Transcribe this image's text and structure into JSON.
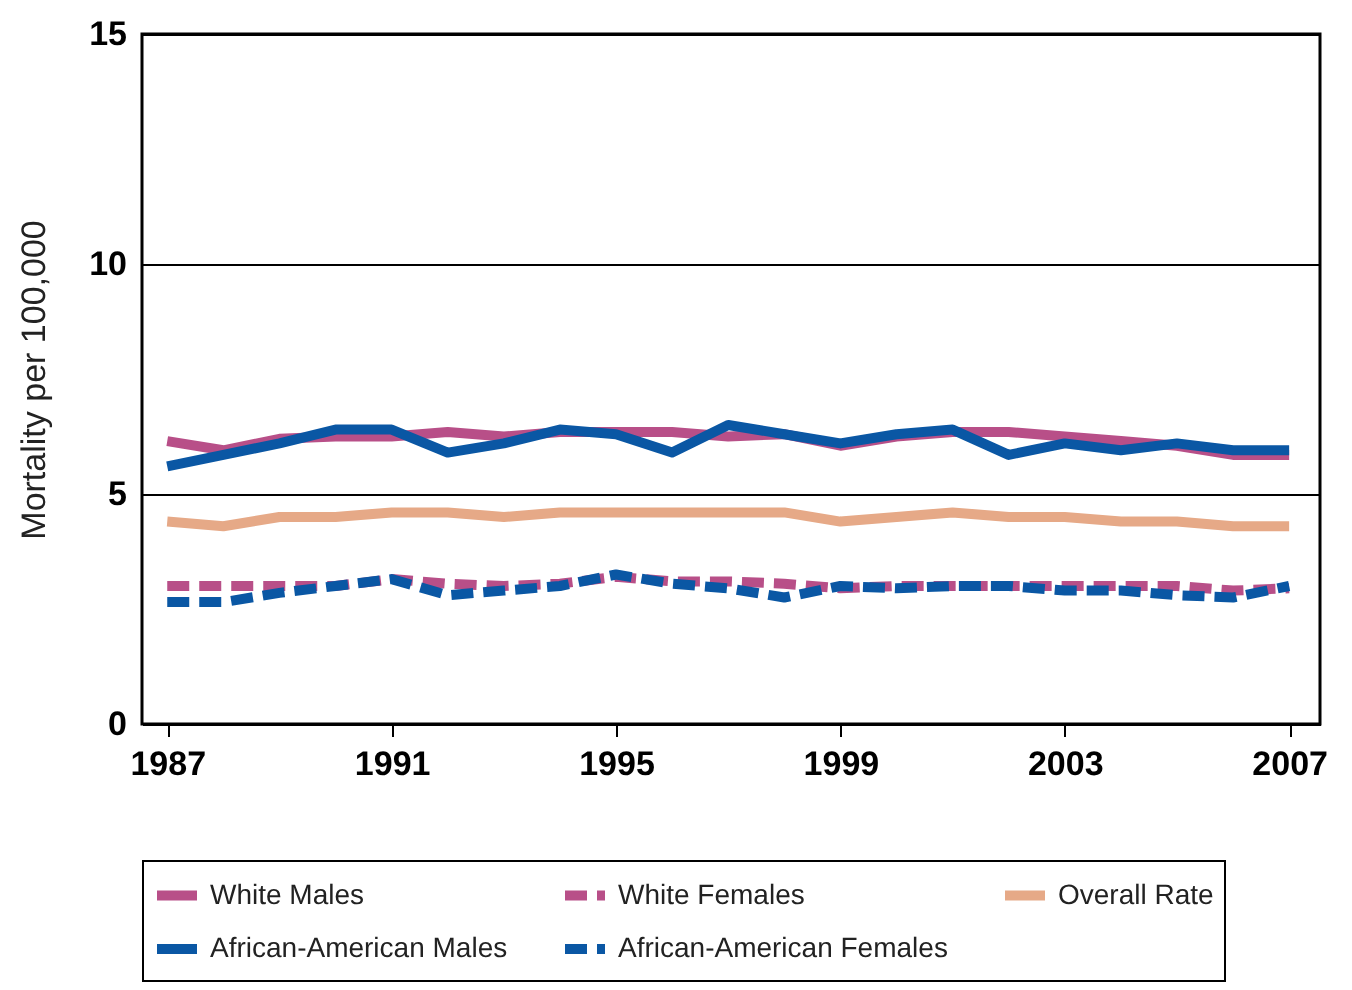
{
  "chart_data": {
    "type": "line",
    "ylabel": "Mortality per 100,000",
    "x": [
      1987,
      1988,
      1989,
      1990,
      1991,
      1992,
      1993,
      1994,
      1995,
      1996,
      1997,
      1998,
      1999,
      2000,
      2001,
      2002,
      2003,
      2004,
      2005,
      2006,
      2007
    ],
    "series": [
      {
        "name": "White Males",
        "color": "#b84f88",
        "line_style": "solid",
        "values": [
          6.15,
          5.95,
          6.2,
          6.25,
          6.25,
          6.35,
          6.25,
          6.35,
          6.35,
          6.35,
          6.25,
          6.3,
          6.05,
          6.25,
          6.35,
          6.35,
          6.25,
          6.15,
          6.05,
          5.85,
          5.85
        ]
      },
      {
        "name": "White Females",
        "color": "#b84f88",
        "line_style": "dashed",
        "values": [
          3.0,
          3.0,
          3.0,
          3.0,
          3.15,
          3.05,
          3.0,
          3.05,
          3.2,
          3.1,
          3.1,
          3.05,
          2.95,
          3.0,
          3.0,
          3.0,
          3.0,
          3.0,
          3.0,
          2.9,
          2.95
        ]
      },
      {
        "name": "Overall Rate",
        "color": "#e6a987",
        "line_style": "solid",
        "values": [
          4.4,
          4.3,
          4.5,
          4.5,
          4.6,
          4.6,
          4.5,
          4.6,
          4.6,
          4.6,
          4.6,
          4.6,
          4.4,
          4.5,
          4.6,
          4.5,
          4.5,
          4.4,
          4.4,
          4.3,
          4.3
        ]
      },
      {
        "name": "African-American Males",
        "color": "#0a57a4",
        "line_style": "solid",
        "values": [
          5.6,
          5.85,
          6.1,
          6.4,
          6.4,
          5.9,
          6.1,
          6.4,
          6.3,
          5.9,
          6.5,
          6.3,
          6.1,
          6.3,
          6.4,
          5.85,
          6.1,
          5.95,
          6.1,
          5.95,
          5.95
        ]
      },
      {
        "name": "African-American Females",
        "color": "#0a57a4",
        "line_style": "dashed",
        "values": [
          2.65,
          2.65,
          2.85,
          3.0,
          3.15,
          2.8,
          2.9,
          3.0,
          3.25,
          3.05,
          2.95,
          2.75,
          3.0,
          2.95,
          3.0,
          3.0,
          2.9,
          2.9,
          2.8,
          2.75,
          3.0
        ]
      }
    ],
    "xlim": [
      1986.55,
      2007.55
    ],
    "xticks": [
      1987,
      1991,
      1995,
      1999,
      2003,
      2007
    ],
    "ylim": [
      0,
      15
    ],
    "yticks": [
      0,
      5,
      10,
      15
    ],
    "grid": "y",
    "legend": "bottom"
  }
}
